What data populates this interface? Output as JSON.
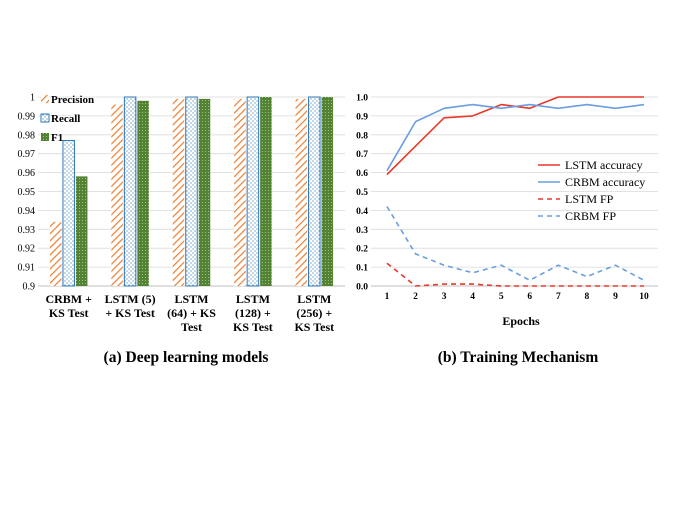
{
  "chart_data": [
    {
      "type": "bar",
      "caption": "(a) Deep learning models",
      "categories": [
        [
          "CRBM +",
          "KS Test"
        ],
        [
          "LSTM (5)",
          "+ KS Test"
        ],
        [
          "LSTM",
          "(64) + KS",
          "Test"
        ],
        [
          "LSTM",
          "(128) +",
          "KS Test"
        ],
        [
          "LSTM",
          "(256) +",
          "KS Test"
        ]
      ],
      "series": [
        {
          "name": "Precision",
          "values": [
            0.934,
            0.996,
            0.999,
            0.999,
            0.999
          ]
        },
        {
          "name": "Recall",
          "values": [
            0.977,
            1.0,
            1.0,
            1.0,
            1.0
          ]
        },
        {
          "name": "F1",
          "values": [
            0.958,
            0.998,
            0.999,
            1.0,
            1.0
          ]
        }
      ],
      "ylim": [
        0.9,
        1.0
      ],
      "yticks": [
        "0.9",
        "0.91",
        "0.92",
        "0.93",
        "0.94",
        "0.95",
        "0.96",
        "0.97",
        "0.98",
        "0.99",
        "1"
      ],
      "legend_position": "top-left",
      "grid": true,
      "colors": {
        "Precision": "#ed7d31",
        "Recall": "#2e75b6",
        "F1": "#548235"
      }
    },
    {
      "type": "line",
      "caption": "(b) Training Mechanism",
      "xlabel": "Epochs",
      "x": [
        1,
        2,
        3,
        4,
        5,
        6,
        7,
        8,
        9,
        10
      ],
      "series": [
        {
          "name": "LSTM accuracy",
          "values": [
            0.59,
            0.74,
            0.89,
            0.9,
            0.96,
            0.94,
            1.0,
            1.0,
            1.0,
            1.0
          ],
          "color": "#e8392b",
          "dash": "solid"
        },
        {
          "name": "CRBM accuracy",
          "values": [
            0.61,
            0.87,
            0.94,
            0.96,
            0.94,
            0.96,
            0.94,
            0.96,
            0.94,
            0.96
          ],
          "color": "#6a9ee0",
          "dash": "solid"
        },
        {
          "name": "LSTM FP",
          "values": [
            0.12,
            0.0,
            0.01,
            0.01,
            0.0,
            0.0,
            0.0,
            0.0,
            0.0,
            0.0
          ],
          "color": "#e8392b",
          "dash": "dashed"
        },
        {
          "name": "CRBM FP",
          "values": [
            0.42,
            0.17,
            0.11,
            0.07,
            0.11,
            0.03,
            0.11,
            0.05,
            0.11,
            0.03
          ],
          "color": "#6a9ee0",
          "dash": "dashed"
        }
      ],
      "ylim": [
        0.0,
        1.0
      ],
      "yticks": [
        "0.0",
        "0.1",
        "0.2",
        "0.3",
        "0.4",
        "0.5",
        "0.6",
        "0.7",
        "0.8",
        "0.9",
        "1.0"
      ],
      "legend_position": "center-right",
      "grid": true
    }
  ]
}
